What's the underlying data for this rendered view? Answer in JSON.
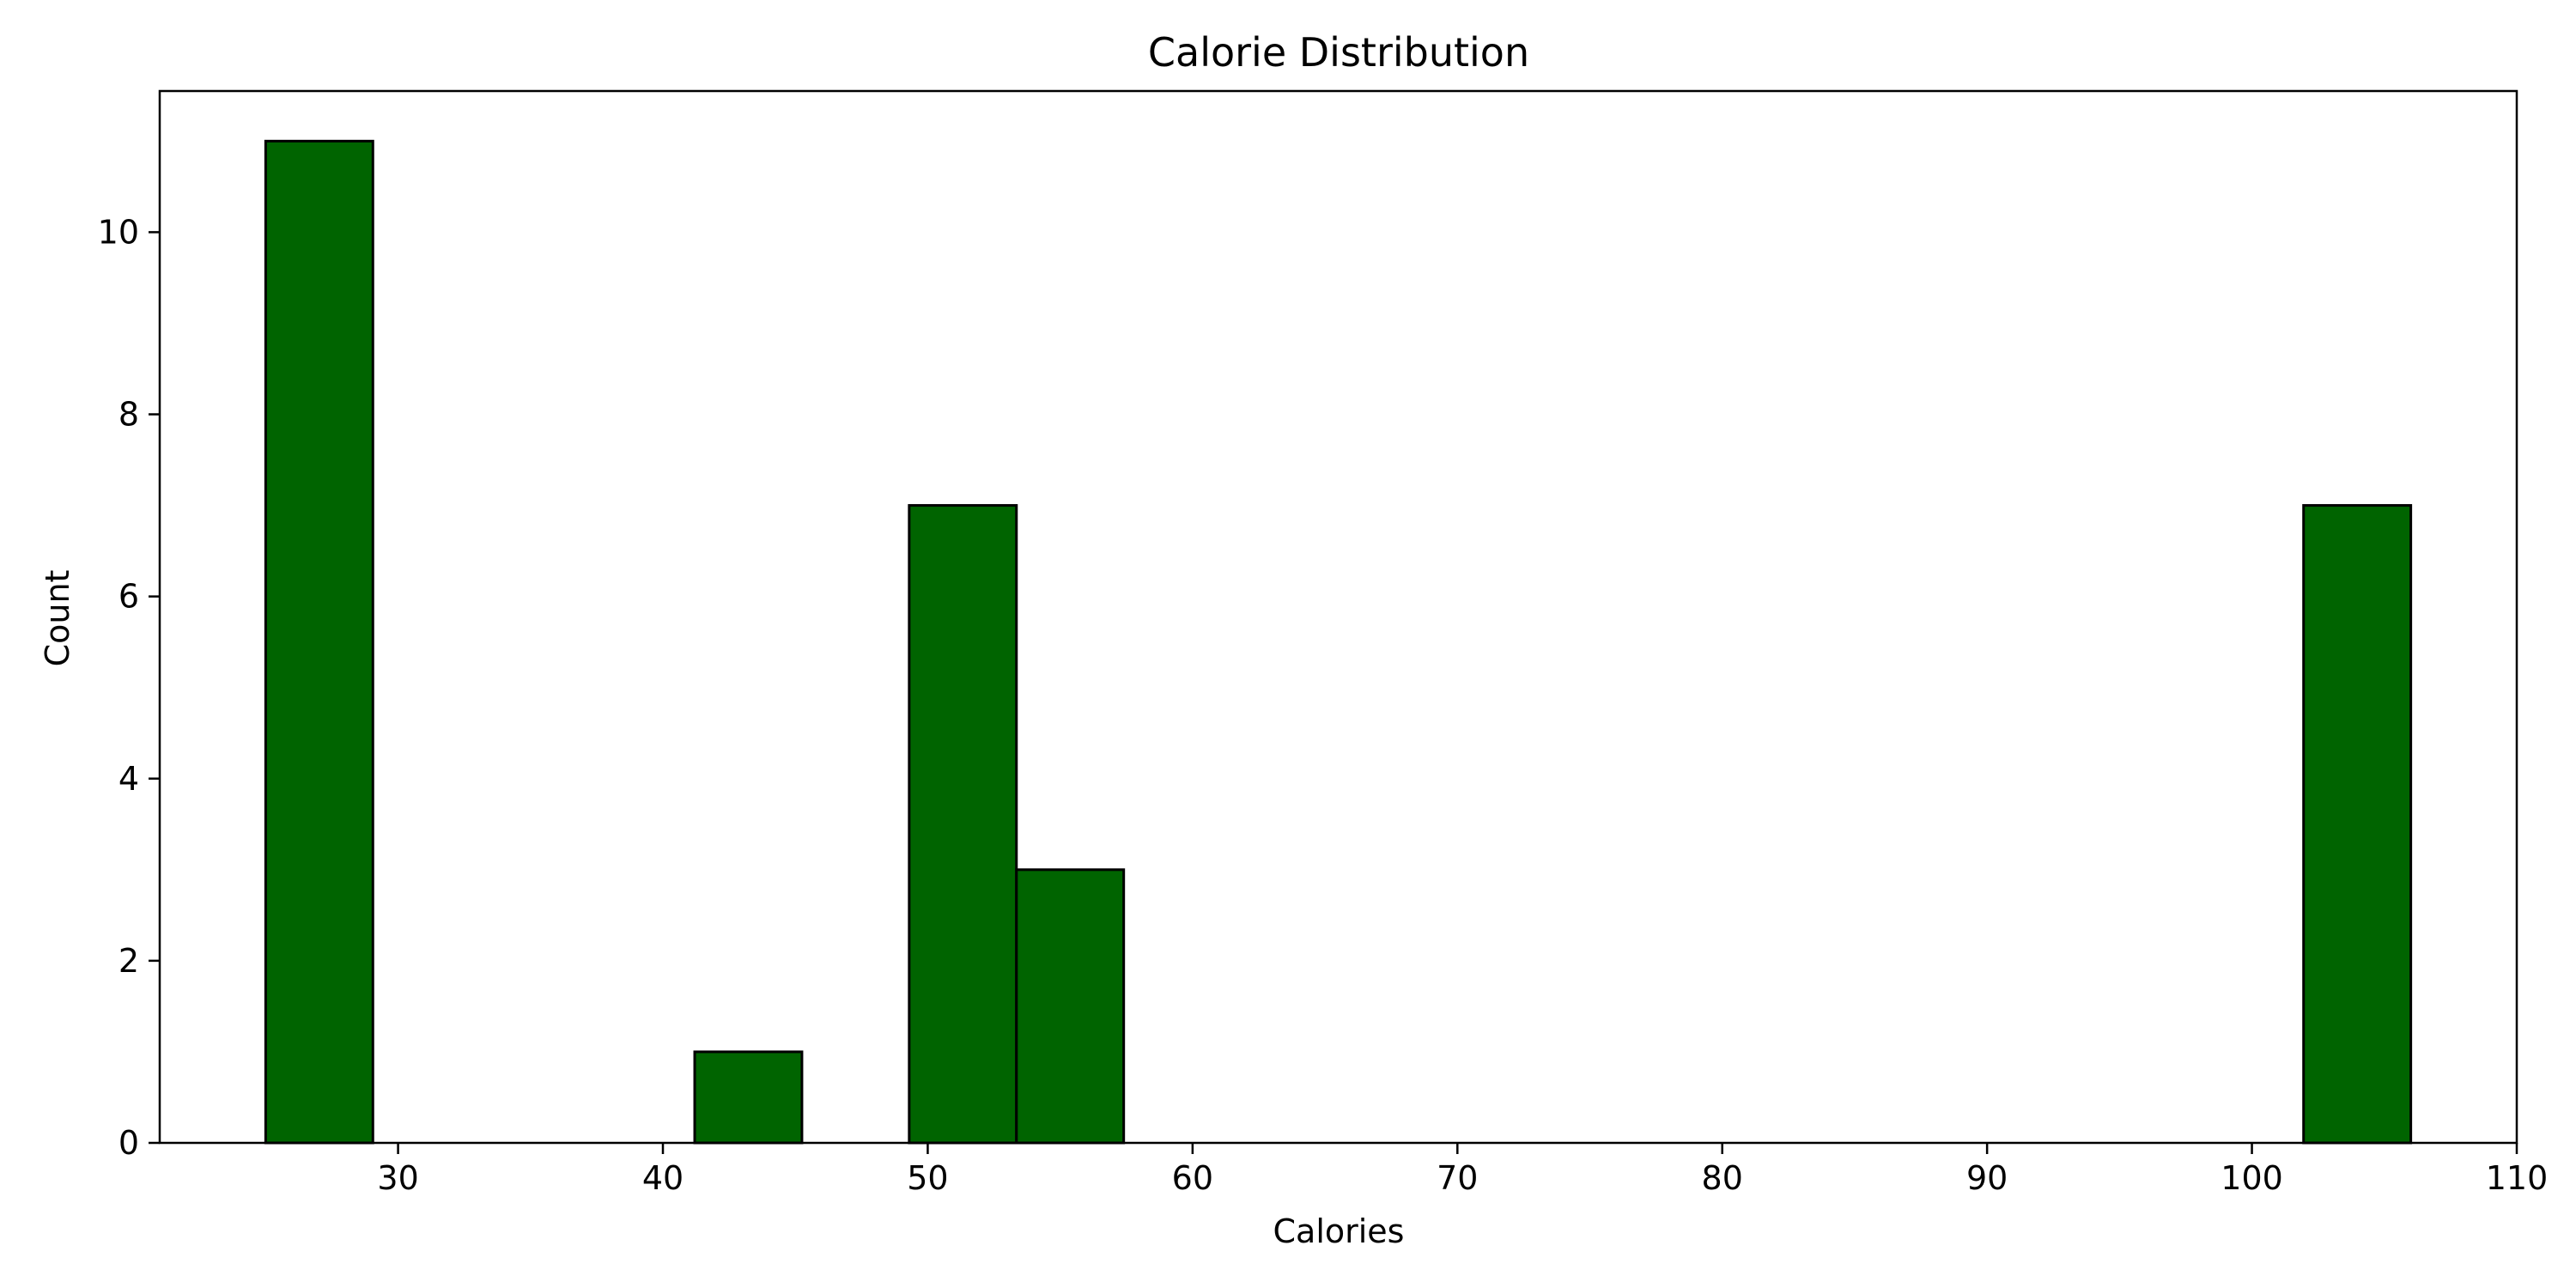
{
  "chart_data": {
    "type": "bar",
    "title": "Calorie Distribution",
    "xlabel": "Calories",
    "ylabel": "Count",
    "xlim": [
      21,
      110
    ],
    "ylim": [
      0,
      11.55
    ],
    "xticks": [
      30,
      40,
      50,
      60,
      70,
      80,
      90,
      100,
      110
    ],
    "yticks": [
      0,
      2,
      4,
      6,
      8,
      10
    ],
    "bin_edges": [
      25,
      29.05,
      33.1,
      37.15,
      41.2,
      45.25,
      49.3,
      53.35,
      57.4,
      61.45,
      65.5,
      69.55,
      73.6,
      77.65,
      81.7,
      85.75,
      89.8,
      93.85,
      97.9,
      101.95,
      106
    ],
    "counts": [
      11,
      0,
      0,
      0,
      1,
      0,
      7,
      3,
      0,
      0,
      0,
      0,
      0,
      0,
      0,
      0,
      0,
      0,
      0,
      7
    ],
    "grid": false,
    "legend": "none",
    "colors": {
      "bar_fill": "#006400",
      "bar_edge": "#000000",
      "axes": "#000000",
      "background": "#ffffff"
    }
  }
}
